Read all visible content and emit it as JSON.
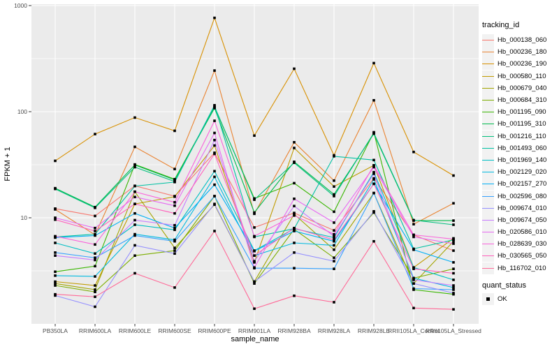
{
  "figure": {
    "background": "#FFFFFF",
    "panel_bg": "#EBEBEB",
    "grid_color": "#FFFFFF",
    "tick_color": "#333333",
    "tick_label_color": "#4D4D4D",
    "point_color": "#000000"
  },
  "legend": {
    "color_title": "tracking_id",
    "shape_title": "quant_status",
    "shape_items": [
      {
        "label": "OK",
        "shape": "filled-square"
      }
    ]
  },
  "chart_data": {
    "type": "line",
    "title": "",
    "xlabel": "sample_name",
    "ylabel": "FPKM + 1",
    "y_scale": "log10",
    "ylim": [
      1,
      1000
    ],
    "y_ticks": [
      10,
      100,
      1000
    ],
    "y_minor_ticks": [
      3.162,
      31.62,
      316.2
    ],
    "grid": true,
    "legend_position": "right",
    "point_shape": "square",
    "categories": [
      "PB350LA",
      "RRIM600LA",
      "RRIM600LE",
      "RRIM600SE",
      "RRIM600PE",
      "RRIM901LA",
      "RRIM928BA",
      "RRIM928LA",
      "RRIM928LE",
      "RRII105LA_Control",
      "RRII105LA_Stressed"
    ],
    "series": [
      {
        "name": "Hb_000138_060",
        "color": "#F8766D",
        "values": [
          12.2,
          10.4,
          20.0,
          16.0,
          41.0,
          8.1,
          11.1,
          7.6,
          23.5,
          6.9,
          4.9
        ]
      },
      {
        "name": "Hb_000236_180",
        "color": "#EA8331",
        "values": [
          12.0,
          6.9,
          46.6,
          28.8,
          244,
          10.9,
          51.5,
          22.4,
          128,
          8.7,
          13.7
        ]
      },
      {
        "name": "Hb_000236_190",
        "color": "#D89000",
        "values": [
          34.4,
          61.5,
          88.0,
          66.0,
          766,
          59.5,
          254,
          38.8,
          287,
          41.7,
          25.0
        ]
      },
      {
        "name": "Hb_000580_110",
        "color": "#C09B00",
        "values": [
          2.5,
          2.3,
          13.5,
          15.8,
          48.0,
          3.8,
          45.5,
          19.7,
          31.2,
          3.4,
          6.4
        ]
      },
      {
        "name": "Hb_000679_040",
        "color": "#A3A500",
        "values": [
          2.4,
          2.1,
          17.6,
          5.2,
          13.3,
          2.5,
          10.8,
          5.0,
          17.1,
          2.4,
          6.0
        ]
      },
      {
        "name": "Hb_000684_310",
        "color": "#7CAE00",
        "values": [
          2.3,
          2.0,
          4.4,
          4.9,
          16.0,
          2.4,
          7.8,
          4.2,
          11.2,
          2.7,
          3.3
        ]
      },
      {
        "name": "Hb_001195_090",
        "color": "#39B600",
        "values": [
          3.1,
          3.5,
          31.8,
          23.1,
          110,
          15.2,
          21.2,
          11.4,
          64.0,
          2.1,
          1.9
        ]
      },
      {
        "name": "Hb_001195_310",
        "color": "#00BB4E",
        "values": [
          19.0,
          12.6,
          31.5,
          22.8,
          108,
          11.2,
          33.7,
          16.6,
          62.0,
          9.4,
          9.4
        ]
      },
      {
        "name": "Hb_001216_110",
        "color": "#00BF7D",
        "values": [
          18.7,
          12.4,
          30.0,
          22.0,
          112,
          14.8,
          33.0,
          16.0,
          63.0,
          9.5,
          8.6
        ]
      },
      {
        "name": "Hb_001493_060",
        "color": "#00C1A3",
        "values": [
          6.6,
          7.0,
          19.9,
          21.7,
          115,
          6.6,
          7.9,
          38.0,
          35.0,
          5.1,
          6.2
        ]
      },
      {
        "name": "Hb_001969_140",
        "color": "#00BFC4",
        "values": [
          5.8,
          4.6,
          8.6,
          7.7,
          27.5,
          4.9,
          7.9,
          6.5,
          26.9,
          3.4,
          2.6
        ]
      },
      {
        "name": "Hb_002129_020",
        "color": "#00BAE0",
        "values": [
          2.85,
          2.8,
          7.0,
          6.2,
          24.3,
          4.4,
          5.8,
          5.5,
          23.0,
          2.7,
          2.2
        ]
      },
      {
        "name": "Hb_002157_270",
        "color": "#00B0F6",
        "values": [
          6.5,
          6.8,
          11.0,
          8.0,
          20.5,
          4.85,
          7.5,
          6.0,
          20.9,
          5.0,
          3.8
        ]
      },
      {
        "name": "Hb_002596_080",
        "color": "#35A2FF",
        "values": [
          4.7,
          4.2,
          6.8,
          6.0,
          16.0,
          3.35,
          3.35,
          3.3,
          17.1,
          2.15,
          2.1
        ]
      },
      {
        "name": "Hb_009674_010",
        "color": "#9590FF",
        "values": [
          1.85,
          1.45,
          5.5,
          4.6,
          13.5,
          2.5,
          4.7,
          3.9,
          11.5,
          2.4,
          1.95
        ]
      },
      {
        "name": "Hb_009674_050",
        "color": "#C77CFF",
        "values": [
          4.4,
          4.0,
          9.5,
          8.5,
          54.0,
          3.9,
          12.9,
          6.7,
          26.0,
          2.6,
          2.3
        ]
      },
      {
        "name": "Hb_020586_010",
        "color": "#E76BF3",
        "values": [
          10.0,
          8.0,
          15.7,
          13.0,
          63.0,
          3.4,
          15.1,
          9.0,
          30.0,
          6.6,
          5.7
        ]
      },
      {
        "name": "Hb_028639_030",
        "color": "#FA62DB",
        "values": [
          6.7,
          5.6,
          17.6,
          14.0,
          82.0,
          6.7,
          10.5,
          7.0,
          31.2,
          6.9,
          6.3
        ]
      },
      {
        "name": "Hb_030565_050",
        "color": "#FF62BC",
        "values": [
          9.6,
          7.5,
          13.5,
          11.0,
          40.0,
          4.4,
          8.0,
          6.2,
          20.9,
          3.3,
          3.0
        ]
      },
      {
        "name": "Hb_116702_010",
        "color": "#FF6A98",
        "values": [
          1.9,
          1.8,
          3.0,
          2.2,
          7.5,
          1.39,
          1.84,
          1.6,
          6.0,
          1.41,
          1.37
        ]
      }
    ]
  }
}
